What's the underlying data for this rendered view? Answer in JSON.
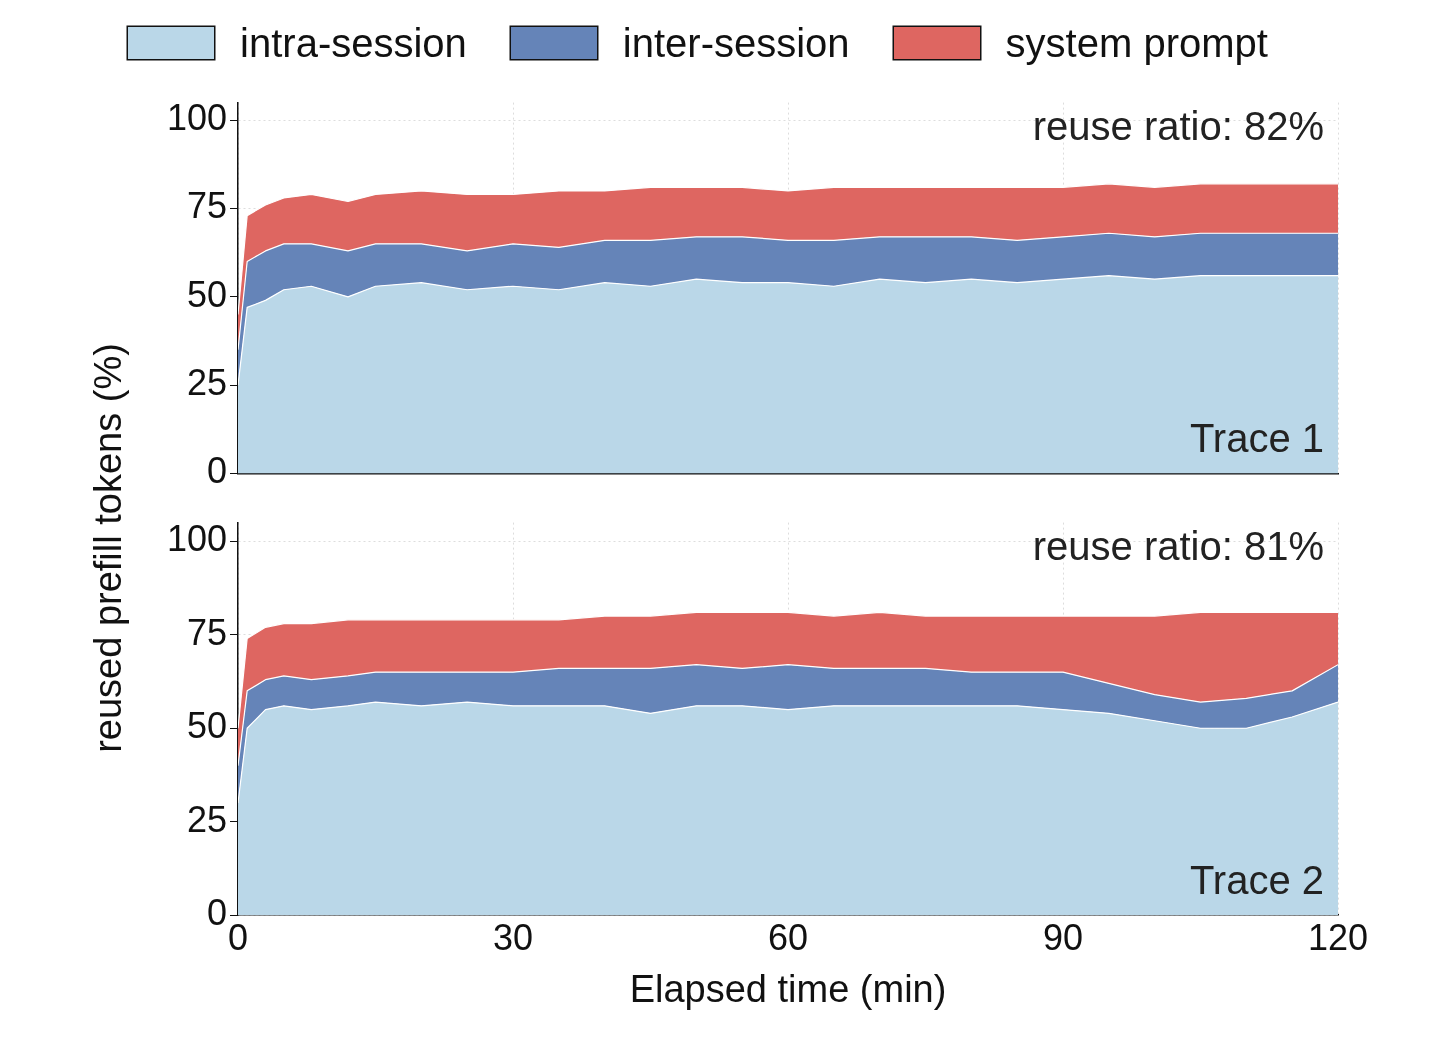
{
  "chart_data": [
    {
      "type": "area",
      "stacked": true,
      "ylabel": "reused prefill tokens (%)",
      "legend": "top",
      "grid": true,
      "tick_labels": "y",
      "x": [
        0,
        1,
        3,
        5,
        8,
        12,
        15,
        20,
        25,
        30,
        35,
        40,
        45,
        50,
        55,
        60,
        65,
        70,
        75,
        80,
        85,
        90,
        95,
        100,
        105,
        110,
        115,
        120
      ],
      "xlim": [
        0,
        120
      ],
      "xticks": [
        0,
        30,
        60,
        90,
        120
      ],
      "ylim": [
        0,
        105
      ],
      "yticks": [
        0,
        25,
        50,
        75,
        100
      ],
      "annotations": [
        "reuse ratio: 82%",
        "Trace 1"
      ],
      "series": [
        {
          "name": "intra-session",
          "color": "#bad7e8",
          "values": [
            25,
            47,
            49,
            52,
            53,
            50,
            53,
            54,
            52,
            53,
            52,
            54,
            53,
            55,
            54,
            54,
            53,
            55,
            54,
            55,
            54,
            55,
            56,
            55,
            56,
            56,
            56,
            56
          ]
        },
        {
          "name": "inter-session",
          "color": "#6584b8",
          "values": [
            10,
            13,
            14,
            13,
            12,
            13,
            12,
            11,
            11,
            12,
            12,
            12,
            13,
            12,
            13,
            12,
            13,
            12,
            13,
            12,
            12,
            12,
            12,
            12,
            12,
            12,
            12,
            12
          ]
        },
        {
          "name": "system prompt",
          "color": "#de6661",
          "values": [
            10,
            13,
            13,
            13,
            14,
            14,
            14,
            15,
            16,
            14,
            16,
            14,
            15,
            14,
            14,
            14,
            15,
            14,
            14,
            14,
            15,
            14,
            14,
            14,
            14,
            14,
            14,
            14
          ]
        }
      ]
    },
    {
      "type": "area",
      "stacked": true,
      "xlabel": "Elapsed time (min)",
      "grid": true,
      "x": [
        0,
        1,
        3,
        5,
        8,
        12,
        15,
        20,
        25,
        30,
        35,
        40,
        45,
        50,
        55,
        60,
        65,
        70,
        75,
        80,
        85,
        90,
        95,
        100,
        105,
        110,
        115,
        120
      ],
      "xlim": [
        0,
        120
      ],
      "xticks": [
        0,
        30,
        60,
        90,
        120
      ],
      "ylim": [
        0,
        105
      ],
      "yticks": [
        0,
        25,
        50,
        75,
        100
      ],
      "annotations": [
        "reuse ratio: 81%",
        "Trace 2"
      ],
      "series": [
        {
          "color": "#bad7e8",
          "values": [
            30,
            50,
            55,
            56,
            55,
            56,
            57,
            56,
            57,
            56,
            56,
            56,
            54,
            56,
            56,
            55,
            56,
            56,
            56,
            56,
            56,
            55,
            54,
            52,
            50,
            50,
            53,
            57
          ]
        },
        {
          "color": "#6584b8",
          "values": [
            10,
            10,
            8,
            8,
            8,
            8,
            8,
            9,
            8,
            9,
            10,
            10,
            12,
            11,
            10,
            12,
            10,
            10,
            10,
            9,
            9,
            10,
            8,
            7,
            7,
            8,
            7,
            10
          ]
        },
        {
          "color": "#de6661",
          "values": [
            10,
            14,
            14,
            14,
            15,
            15,
            14,
            14,
            14,
            14,
            13,
            14,
            14,
            14,
            15,
            14,
            14,
            15,
            14,
            15,
            15,
            15,
            18,
            21,
            24,
            23,
            21,
            14
          ]
        }
      ]
    }
  ]
}
